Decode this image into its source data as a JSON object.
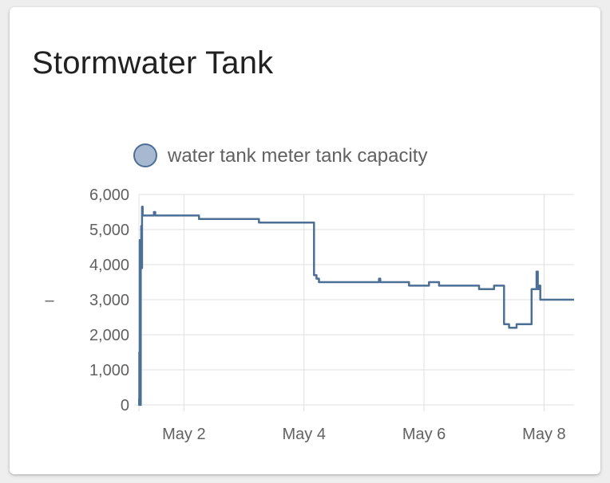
{
  "card": {
    "title": "Stormwater Tank"
  },
  "colors": {
    "series": "#4c6f96",
    "series_fill": "#a7b9d0",
    "grid": "#e0e0e0",
    "text": "#616161"
  },
  "chart_data": {
    "type": "line",
    "step": true,
    "title": "",
    "xlabel": "",
    "ylabel": "–",
    "xlim": [
      "2024-05-01T06:00",
      "2024-05-08T12:00"
    ],
    "ylim": [
      0,
      6000
    ],
    "y_ticks": [
      0,
      1000,
      2000,
      3000,
      4000,
      5000,
      6000
    ],
    "y_tick_labels": [
      "0",
      "1,000",
      "2,000",
      "3,000",
      "4,000",
      "5,000",
      "6,000"
    ],
    "x_ticks": [
      "2024-05-02T00:00",
      "2024-05-04T00:00",
      "2024-05-06T00:00",
      "2024-05-08T00:00"
    ],
    "x_tick_labels": [
      "May 2",
      "May 4",
      "May 6",
      "May 8"
    ],
    "grid": true,
    "legend": "top",
    "series": [
      {
        "name": "water tank meter tank capacity",
        "points": [
          [
            "2024-05-01T06:00",
            200
          ],
          [
            "2024-05-01T06:05",
            0
          ],
          [
            "2024-05-01T06:10",
            1500
          ],
          [
            "2024-05-01T06:12",
            50
          ],
          [
            "2024-05-01T06:20",
            4700
          ],
          [
            "2024-05-01T06:25",
            100
          ],
          [
            "2024-05-01T06:35",
            0
          ],
          [
            "2024-05-01T06:45",
            4100
          ],
          [
            "2024-05-01T06:55",
            5100
          ],
          [
            "2024-05-01T07:05",
            3900
          ],
          [
            "2024-05-01T07:15",
            5650
          ],
          [
            "2024-05-01T07:30",
            5400
          ],
          [
            "2024-05-01T12:00",
            5500
          ],
          [
            "2024-05-01T12:30",
            5400
          ],
          [
            "2024-05-02T06:00",
            5300
          ],
          [
            "2024-05-03T06:00",
            5200
          ],
          [
            "2024-05-04T04:00",
            3700
          ],
          [
            "2024-05-04T05:00",
            3600
          ],
          [
            "2024-05-04T06:00",
            3500
          ],
          [
            "2024-05-05T06:00",
            3600
          ],
          [
            "2024-05-05T06:30",
            3500
          ],
          [
            "2024-05-05T18:00",
            3400
          ],
          [
            "2024-05-06T02:00",
            3500
          ],
          [
            "2024-05-06T06:00",
            3400
          ],
          [
            "2024-05-06T22:00",
            3300
          ],
          [
            "2024-05-07T04:00",
            3400
          ],
          [
            "2024-05-07T08:00",
            2300
          ],
          [
            "2024-05-07T10:00",
            2200
          ],
          [
            "2024-05-07T13:00",
            2300
          ],
          [
            "2024-05-07T19:00",
            3300
          ],
          [
            "2024-05-07T21:00",
            3800
          ],
          [
            "2024-05-07T21:30",
            3300
          ],
          [
            "2024-05-07T22:00",
            3400
          ],
          [
            "2024-05-07T22:30",
            3000
          ],
          [
            "2024-05-08T12:00",
            3000
          ]
        ]
      }
    ]
  }
}
